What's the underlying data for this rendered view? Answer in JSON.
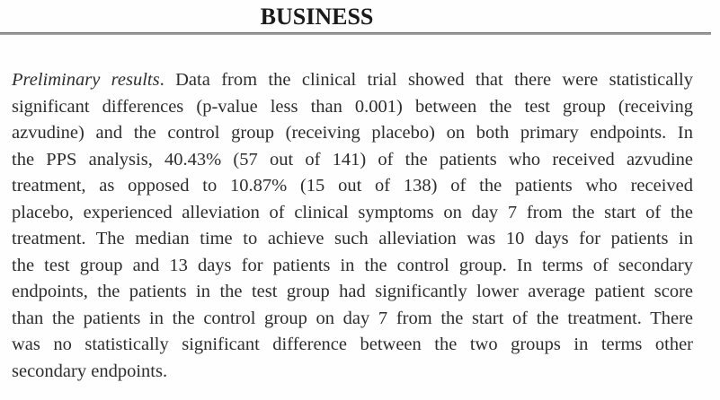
{
  "header": {
    "title": "BUSINESS"
  },
  "paragraph": {
    "lead_italic": "Preliminary results",
    "lines": [
      ". Data from the clinical trial showed that there were statistically",
      "significant differences (p-value less than 0.001) between the test group (receiving",
      "azvudine) and the control group (receiving placebo) on both primary endpoints. In",
      "the PPS analysis, 40.43% (57 out of 141) of the patients who received azvudine",
      "treatment, as opposed to 10.87% (15 out of 138) of the patients who received",
      "placebo, experienced alleviation of clinical symptoms on day 7 from the start of the",
      "treatment. The median time to achieve such alleviation was 10 days for patients in",
      "the test group and 13 days for patients in the control group. In terms of secondary",
      "endpoints, the patients in the test group had significantly lower average patient score",
      "than the patients in the control group on day 7 from the start of the treatment. There",
      "was no statistically significant difference between the two groups in terms other",
      "secondary endpoints."
    ],
    "full_text": "Preliminary results. Data from the clinical trial showed that there were statistically significant differences (p-value less than 0.001) between the test group (receiving azvudine) and the control group (receiving placebo) on both primary endpoints. In the PPS analysis, 40.43% (57 out of 141) of the patients who received azvudine treatment, as opposed to 10.87% (15 out of 138) of the patients who received placebo, experienced alleviation of clinical symptoms on day 7 from the start of the treatment. The median time to achieve such alleviation was 10 days for patients in the test group and 13 days for patients in the control group. In terms of secondary endpoints, the patients in the test group had significantly lower average patient score than the patients in the control group on day 7 from the start of the treatment. There was no statistically significant difference between the two groups in terms other secondary endpoints."
  },
  "colors": {
    "background": "#fefefe",
    "text": "#2d2d2d",
    "title": "#1a1a1a",
    "divider_dark": "#6e6e6e",
    "divider_light": "#ababab"
  }
}
